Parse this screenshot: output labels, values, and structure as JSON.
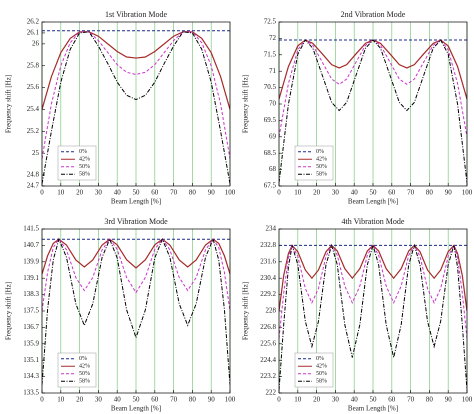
{
  "chart_data": [
    {
      "type": "line",
      "title": "1st Vibration Mode",
      "xlabel": "Beam Length [%]",
      "ylabel": "Frequency shift [Hz]",
      "x": [
        0,
        5,
        10,
        15,
        20,
        25,
        30,
        35,
        40,
        45,
        50,
        55,
        60,
        65,
        70,
        75,
        80,
        85,
        90,
        95,
        100
      ],
      "series": [
        {
          "name": "0%",
          "color": "#1c2a8c",
          "dash": "dashed",
          "values": [
            26.12,
            26.12,
            26.12,
            26.12,
            26.12,
            26.12,
            26.12,
            26.12,
            26.12,
            26.12,
            26.12,
            26.12,
            26.12,
            26.12,
            26.12,
            26.12,
            26.12,
            26.12,
            26.12,
            26.12,
            26.12
          ]
        },
        {
          "name": "42%",
          "color": "#a52a2a",
          "dash": "solid",
          "values": [
            25.4,
            25.7,
            25.92,
            26.05,
            26.11,
            26.11,
            26.07,
            26.0,
            25.93,
            25.88,
            25.87,
            25.88,
            25.93,
            26.0,
            26.07,
            26.11,
            26.11,
            26.05,
            25.92,
            25.7,
            25.4
          ]
        },
        {
          "name": "50%",
          "color": "#cc33cc",
          "dash": "dashed",
          "values": [
            24.95,
            25.45,
            25.8,
            26.01,
            26.11,
            26.11,
            26.03,
            25.92,
            25.81,
            25.74,
            25.72,
            25.74,
            25.81,
            25.92,
            26.03,
            26.11,
            26.11,
            26.01,
            25.8,
            25.45,
            24.95
          ]
        },
        {
          "name": "58%",
          "color": "#000000",
          "dash": "dashdot",
          "values": [
            24.72,
            25.2,
            25.65,
            25.95,
            26.1,
            26.11,
            25.98,
            25.82,
            25.65,
            25.53,
            25.49,
            25.53,
            25.65,
            25.82,
            25.98,
            26.11,
            26.1,
            25.95,
            25.65,
            25.2,
            24.72
          ]
        }
      ],
      "xlim": [
        0,
        100
      ],
      "xticks": [
        0,
        10,
        20,
        30,
        40,
        50,
        60,
        70,
        80,
        90,
        100
      ],
      "ylim": [
        24.7,
        26.2
      ],
      "yticks": [
        24.7,
        24.8,
        25,
        25.2,
        25.4,
        25.6,
        25.8,
        26,
        26.1,
        26.2
      ],
      "grid": "x",
      "grid_color": "#7fc97f",
      "legend": "lower left"
    },
    {
      "type": "line",
      "title": "2nd Vibration Mode",
      "xlabel": "Beam Length [%]",
      "ylabel": "Frequency shift [Hz]",
      "x": [
        0,
        5,
        10,
        14,
        18,
        23,
        28,
        32,
        36,
        41,
        46,
        50,
        54,
        59,
        64,
        68,
        72,
        77,
        82,
        86,
        90,
        95,
        100
      ],
      "series": [
        {
          "name": "0%",
          "color": "#1c2a8c",
          "dash": "dashed",
          "values": [
            71.95,
            71.95,
            71.95,
            71.95,
            71.95,
            71.95,
            71.95,
            71.95,
            71.95,
            71.95,
            71.95,
            71.95,
            71.95,
            71.95,
            71.95,
            71.95,
            71.95,
            71.95,
            71.95,
            71.95,
            71.95,
            71.95,
            71.95
          ]
        },
        {
          "name": "42%",
          "color": "#a52a2a",
          "dash": "solid",
          "values": [
            70.15,
            71.14,
            71.77,
            71.95,
            71.85,
            71.53,
            71.2,
            71.1,
            71.2,
            71.53,
            71.85,
            71.95,
            71.85,
            71.53,
            71.2,
            71.1,
            71.2,
            71.53,
            71.85,
            71.95,
            71.77,
            71.14,
            70.15
          ]
        },
        {
          "name": "50%",
          "color": "#cc33cc",
          "dash": "dashed",
          "values": [
            69.0,
            70.62,
            71.65,
            71.95,
            71.79,
            71.28,
            70.76,
            70.6,
            70.76,
            71.28,
            71.79,
            71.95,
            71.79,
            71.28,
            70.76,
            70.6,
            70.76,
            71.28,
            71.79,
            71.95,
            71.65,
            70.62,
            69.0
          ]
        },
        {
          "name": "58%",
          "color": "#000000",
          "dash": "dashdot",
          "values": [
            67.6,
            69.99,
            71.52,
            71.95,
            71.7,
            70.88,
            70.05,
            69.8,
            70.05,
            70.88,
            71.7,
            71.95,
            71.7,
            70.88,
            70.05,
            69.8,
            70.05,
            70.88,
            71.7,
            71.95,
            71.52,
            69.99,
            67.6
          ]
        }
      ],
      "xlim": [
        0,
        100
      ],
      "xticks": [
        0,
        10,
        20,
        30,
        40,
        50,
        60,
        70,
        80,
        90,
        100
      ],
      "ylim": [
        67.5,
        72.5
      ],
      "yticks": [
        67.5,
        68,
        68.5,
        69,
        69.5,
        70,
        70.5,
        71,
        71.5,
        72,
        72.5
      ],
      "grid": "x",
      "grid_color": "#7fc97f",
      "legend": "lower left"
    },
    {
      "type": "line",
      "title": "3rd Vibration Mode",
      "xlabel": "Beam Length [%]",
      "ylabel": "Frequency shift [Hz]",
      "x": [
        0,
        3,
        6,
        9,
        13,
        18,
        22.5,
        27,
        32,
        36,
        40,
        45,
        50,
        55,
        60,
        64,
        68,
        73,
        77.5,
        82,
        87,
        91,
        94,
        97,
        100
      ],
      "series": [
        {
          "name": "0%",
          "color": "#1c2a8c",
          "dash": "dashed",
          "values": [
            141,
            141,
            141,
            141,
            141,
            141,
            141,
            141,
            141,
            141,
            141,
            141,
            141,
            141,
            141,
            141,
            141,
            141,
            141,
            141,
            141,
            141,
            141,
            141,
            141
          ]
        },
        {
          "name": "42%",
          "color": "#a52a2a",
          "dash": "solid",
          "values": [
            139.3,
            140.2,
            140.8,
            141.0,
            140.72,
            139.99,
            139.65,
            139.99,
            140.72,
            141.0,
            140.73,
            140.0,
            139.6,
            140.0,
            140.73,
            141.0,
            140.72,
            139.99,
            139.65,
            139.99,
            140.72,
            141.0,
            140.8,
            140.2,
            139.3
          ]
        },
        {
          "name": "50%",
          "color": "#cc33cc",
          "dash": "dashed",
          "values": [
            137.5,
            139.4,
            140.6,
            141.0,
            140.49,
            139.13,
            138.5,
            139.13,
            140.49,
            141.0,
            140.51,
            139.14,
            138.4,
            139.14,
            140.51,
            141.0,
            140.49,
            139.13,
            138.5,
            139.13,
            140.49,
            141.0,
            140.6,
            139.4,
            137.5
          ]
        },
        {
          "name": "58%",
          "color": "#000000",
          "dash": "dashdot",
          "values": [
            133.9,
            137.6,
            140.0,
            141.0,
            140.13,
            137.85,
            136.8,
            137.85,
            140.13,
            141.0,
            140.09,
            137.56,
            136.2,
            137.56,
            140.09,
            141.0,
            140.13,
            137.85,
            136.8,
            137.85,
            140.13,
            141.0,
            140.0,
            137.6,
            133.9
          ]
        }
      ],
      "xlim": [
        0,
        100
      ],
      "xticks": [
        0,
        10,
        20,
        30,
        40,
        50,
        60,
        70,
        80,
        90,
        100
      ],
      "ylim": [
        133.5,
        141.5
      ],
      "yticks": [
        133.5,
        134.3,
        135.1,
        135.9,
        136.7,
        137.5,
        138.3,
        139.1,
        139.9,
        140.7,
        141.5
      ],
      "grid": "x",
      "grid_color": "#7fc97f",
      "legend": "lower left"
    },
    {
      "type": "line",
      "title": "4th Vibration Mode",
      "xlabel": "Beam Length [%]",
      "ylabel": "Frequency shift [Hz]",
      "x": [
        0,
        2.5,
        5,
        7,
        10,
        14,
        17.5,
        21,
        25,
        28,
        31,
        35,
        39,
        43,
        47,
        50,
        53,
        57,
        61,
        65,
        69,
        72,
        75,
        79,
        82.5,
        86,
        90,
        93,
        95,
        97.5,
        100
      ],
      "series": [
        {
          "name": "0%",
          "color": "#1c2a8c",
          "dash": "dashed",
          "values": [
            232.8,
            232.8,
            232.8,
            232.8,
            232.8,
            232.8,
            232.8,
            232.8,
            232.8,
            232.8,
            232.8,
            232.8,
            232.8,
            232.8,
            232.8,
            232.8,
            232.8,
            232.8,
            232.8,
            232.8,
            232.8,
            232.8,
            232.8,
            232.8,
            232.8,
            232.8,
            232.8,
            232.8,
            232.8,
            232.8,
            232.8
          ]
        },
        {
          "name": "42%",
          "color": "#a52a2a",
          "dash": "solid",
          "values": [
            228.0,
            230.6,
            232.2,
            232.8,
            232.34,
            231.0,
            230.4,
            231.0,
            232.34,
            232.8,
            232.39,
            231.1,
            230.4,
            231.1,
            232.39,
            232.8,
            232.39,
            231.1,
            230.4,
            231.1,
            232.39,
            232.8,
            232.34,
            231.0,
            230.4,
            231.0,
            232.34,
            232.8,
            232.2,
            230.6,
            228.0
          ]
        },
        {
          "name": "50%",
          "color": "#cc33cc",
          "dash": "dashed",
          "values": [
            226.0,
            229.3,
            231.9,
            232.8,
            232.0,
            229.65,
            228.6,
            229.65,
            232.0,
            232.8,
            232.08,
            229.83,
            228.6,
            229.83,
            232.08,
            232.8,
            232.08,
            229.83,
            228.6,
            229.83,
            232.08,
            232.8,
            232.0,
            229.65,
            228.6,
            229.65,
            232.0,
            232.8,
            231.9,
            229.3,
            226.0
          ]
        },
        {
          "name": "58%",
          "color": "#000000",
          "dash": "dashdot",
          "values": [
            222.2,
            227.0,
            231.2,
            232.8,
            231.39,
            227.25,
            225.4,
            227.25,
            231.39,
            232.8,
            231.39,
            227.0,
            224.6,
            227.0,
            231.39,
            232.8,
            231.39,
            227.0,
            224.6,
            227.0,
            231.39,
            232.8,
            231.39,
            227.25,
            225.4,
            227.25,
            231.39,
            232.8,
            231.2,
            227.0,
            222.2
          ]
        }
      ],
      "xlim": [
        0,
        100
      ],
      "xticks": [
        0,
        10,
        20,
        30,
        40,
        50,
        60,
        70,
        80,
        90,
        100
      ],
      "ylim": [
        222,
        234
      ],
      "yticks": [
        222,
        223.2,
        224.4,
        225.6,
        226.8,
        228,
        229.2,
        230.4,
        231.6,
        232.8,
        234
      ],
      "grid": "x",
      "grid_color": "#7fc97f",
      "legend": "lower left"
    }
  ]
}
